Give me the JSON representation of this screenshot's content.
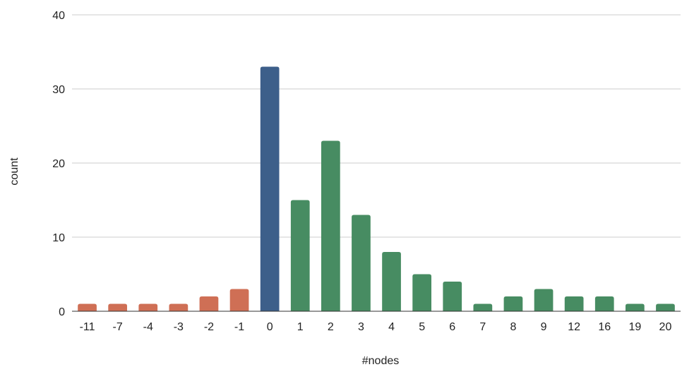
{
  "chart_data": {
    "type": "bar",
    "title": "",
    "xlabel": "#nodes",
    "ylabel": "count",
    "ylim": [
      0,
      40
    ],
    "yticks": [
      "0",
      "10",
      "20",
      "30",
      "40"
    ],
    "grid": true,
    "legend": "none",
    "categories": [
      "-11",
      "-7",
      "-4",
      "-3",
      "-2",
      "-1",
      "0",
      "1",
      "2",
      "3",
      "4",
      "5",
      "6",
      "7",
      "8",
      "9",
      "12",
      "16",
      "19",
      "20"
    ],
    "values": [
      1,
      1,
      1,
      1,
      2,
      3,
      33,
      15,
      23,
      13,
      8,
      5,
      4,
      1,
      2,
      3,
      2,
      2,
      1,
      1
    ],
    "bar_colors": [
      "#cf6f55",
      "#cf6f55",
      "#cf6f55",
      "#cf6f55",
      "#cf6f55",
      "#cf6f55",
      "#3d5f8a",
      "#478c62",
      "#478c62",
      "#478c62",
      "#478c62",
      "#478c62",
      "#478c62",
      "#478c62",
      "#478c62",
      "#478c62",
      "#478c62",
      "#478c62",
      "#478c62",
      "#478c62"
    ]
  }
}
